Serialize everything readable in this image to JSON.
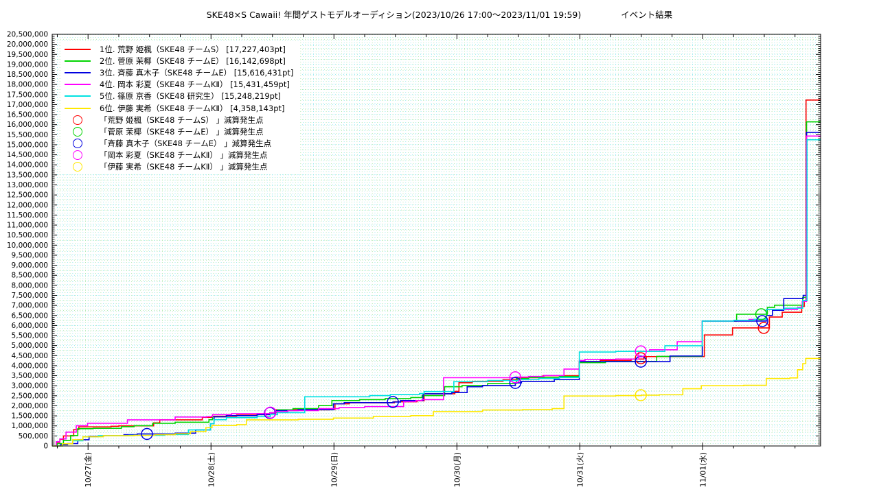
{
  "title_left": "SKE48×S Cawaii! 年間ゲストモデルオーディション(2023/10/26 17:00～2023/11/01 19:59)",
  "title_right": "イベント結果",
  "chart_data": {
    "type": "line",
    "title": "SKE48×S Cawaii! 年間ゲストモデルオーディション(2023/10/26 17:00～2023/11/01 19:59) イベント結果",
    "x_start_datetime": "2023/10/26 17:00",
    "x_end_datetime": "2023/11/01 19:59",
    "x_range_hours": [
      0,
      150
    ],
    "ylim": [
      0,
      20500000
    ],
    "ytick_step": 500000,
    "ytick_minor_step": 100000,
    "xtick_major": [
      {
        "hour": 7,
        "label": "10/27(金)"
      },
      {
        "hour": 31,
        "label": "10/28(土)"
      },
      {
        "hour": 55,
        "label": "10/29(日)"
      },
      {
        "hour": 79,
        "label": "10/30(月)"
      },
      {
        "hour": 103,
        "label": "10/31(火)"
      },
      {
        "hour": 127,
        "label": "11/01(水)"
      }
    ],
    "xtick_minor_step_hours": 6,
    "xtick_minor_start_hour": 1,
    "grid": {
      "dot_cyan": "#9ce9ef",
      "dot_green": "#b4e9b4"
    },
    "legend_position": "top-left",
    "series": [
      {
        "rank": 1,
        "name": "荒野 姫楓",
        "team": "SKE48 チームS",
        "final_pt": 17227403,
        "color": "#ff0000",
        "legend_label": "1位. 荒野 姫楓（SKE48 チームS）  [17,227,403pt]",
        "points": [
          [
            0,
            0
          ],
          [
            0.8,
            180000
          ],
          [
            1.5,
            330000
          ],
          [
            2.2,
            500000
          ],
          [
            4.2,
            820000
          ],
          [
            5.2,
            950000
          ],
          [
            11.5,
            980000
          ],
          [
            13,
            1000000
          ],
          [
            19.8,
            1150000
          ],
          [
            21,
            1300000
          ],
          [
            29.3,
            1430000
          ],
          [
            31.2,
            1480000
          ],
          [
            36,
            1540000
          ],
          [
            40,
            1600000
          ],
          [
            42.5,
            1640000
          ],
          [
            43.6,
            1800000
          ],
          [
            54.2,
            1820000
          ],
          [
            55.2,
            2100000
          ],
          [
            58,
            2150000
          ],
          [
            66.8,
            2200000
          ],
          [
            71.2,
            2250000
          ],
          [
            72.6,
            2600000
          ],
          [
            78.6,
            2720000
          ],
          [
            79.4,
            3150000
          ],
          [
            82,
            3220000
          ],
          [
            88,
            3300000
          ],
          [
            91.2,
            3400000
          ],
          [
            95.8,
            3500000
          ],
          [
            102.9,
            4200000
          ],
          [
            107,
            4260000
          ],
          [
            113,
            4330000
          ],
          [
            115.5,
            4450000
          ],
          [
            127.3,
            5530000
          ],
          [
            132.8,
            5880000
          ],
          [
            140,
            6420000
          ],
          [
            142.5,
            6660000
          ],
          [
            146.3,
            6950000
          ],
          [
            146.8,
            7250000
          ],
          [
            147.15,
            17227403
          ],
          [
            150,
            17227403
          ]
        ]
      },
      {
        "rank": 2,
        "name": "菅原 茉椰",
        "team": "SKE48 チームE",
        "final_pt": 16142698,
        "color": "#00d400",
        "legend_label": "2位. 菅原 茉椰（SKE48 チームE）  [16,142,698pt]",
        "points": [
          [
            0,
            0
          ],
          [
            1,
            120000
          ],
          [
            2.2,
            280000
          ],
          [
            3.6,
            520000
          ],
          [
            5,
            860000
          ],
          [
            8,
            880000
          ],
          [
            13.5,
            960000
          ],
          [
            16,
            1010000
          ],
          [
            19.6,
            1130000
          ],
          [
            24,
            1180000
          ],
          [
            30.6,
            1310000
          ],
          [
            31.3,
            1460000
          ],
          [
            34,
            1510000
          ],
          [
            40,
            1560000
          ],
          [
            42.6,
            1660000
          ],
          [
            44,
            1800000
          ],
          [
            47,
            1860000
          ],
          [
            52,
            2010000
          ],
          [
            54.6,
            2260000
          ],
          [
            60,
            2310000
          ],
          [
            65,
            2360000
          ],
          [
            70,
            2410000
          ],
          [
            72.2,
            2510000
          ],
          [
            76.6,
            2950000
          ],
          [
            80,
            3010000
          ],
          [
            85,
            3110000
          ],
          [
            90.6,
            3360000
          ],
          [
            93,
            3410000
          ],
          [
            99,
            3460000
          ],
          [
            102.9,
            4150000
          ],
          [
            108,
            4210000
          ],
          [
            118,
            4460000
          ],
          [
            126.9,
            6220000
          ],
          [
            133.6,
            6560000
          ],
          [
            139.6,
            6900000
          ],
          [
            141,
            7010000
          ],
          [
            146.5,
            7400000
          ],
          [
            147.25,
            16142698
          ],
          [
            150,
            16142698
          ]
        ]
      },
      {
        "rank": 3,
        "name": "斉藤 真木子",
        "team": "SKE48 チームE",
        "final_pt": 15616431,
        "color": "#0000e0",
        "legend_label": "3位. 斉藤 真木子（SKE48 チームE）  [15,616,431pt]",
        "points": [
          [
            0,
            0
          ],
          [
            1.6,
            60000
          ],
          [
            3,
            120000
          ],
          [
            5,
            310000
          ],
          [
            7.2,
            480000
          ],
          [
            10,
            510000
          ],
          [
            14,
            560000
          ],
          [
            16.6,
            600000
          ],
          [
            24,
            640000
          ],
          [
            28,
            800000
          ],
          [
            30.9,
            1110000
          ],
          [
            31.6,
            1450000
          ],
          [
            34,
            1510000
          ],
          [
            40,
            1560000
          ],
          [
            42.5,
            1640000
          ],
          [
            43.6,
            1760000
          ],
          [
            48,
            1810000
          ],
          [
            54.9,
            2100000
          ],
          [
            57,
            2160000
          ],
          [
            66.5,
            2190000
          ],
          [
            68,
            2260000
          ],
          [
            72.4,
            2600000
          ],
          [
            78,
            2660000
          ],
          [
            81,
            2950000
          ],
          [
            84,
            3010000
          ],
          [
            90.4,
            3140000
          ],
          [
            91.6,
            3210000
          ],
          [
            98,
            3310000
          ],
          [
            102.9,
            4200000
          ],
          [
            120.6,
            4480000
          ],
          [
            126.9,
            6220000
          ],
          [
            139.4,
            6500000
          ],
          [
            140.6,
            6760000
          ],
          [
            142.8,
            7340000
          ],
          [
            146.6,
            7500000
          ],
          [
            147.25,
            15616431
          ],
          [
            150,
            15616431
          ]
        ]
      },
      {
        "rank": 4,
        "name": "岡本 彩夏",
        "team": "SKE48 チームKⅡ",
        "final_pt": 15431459,
        "color": "#ff00ff",
        "legend_label": "4位. 岡本 彩夏（SKE48 チームKⅡ）  [15,431,459pt]",
        "points": [
          [
            0,
            0
          ],
          [
            0.8,
            210000
          ],
          [
            1.5,
            350000
          ],
          [
            2.7,
            690000
          ],
          [
            4.7,
            1010000
          ],
          [
            6.9,
            1130000
          ],
          [
            14.7,
            1300000
          ],
          [
            24,
            1440000
          ],
          [
            30.2,
            1460000
          ],
          [
            31.3,
            1560000
          ],
          [
            35,
            1610000
          ],
          [
            42.6,
            1660000
          ],
          [
            43.4,
            1710000
          ],
          [
            46,
            1760000
          ],
          [
            52,
            1860000
          ],
          [
            56,
            1910000
          ],
          [
            61,
            1960000
          ],
          [
            68.6,
            2210000
          ],
          [
            71,
            2260000
          ],
          [
            72.2,
            2310000
          ],
          [
            76.4,
            3400000
          ],
          [
            90.4,
            3430000
          ],
          [
            93,
            3460000
          ],
          [
            96,
            3510000
          ],
          [
            99.9,
            3830000
          ],
          [
            102.9,
            4260000
          ],
          [
            104,
            4310000
          ],
          [
            110,
            4330000
          ],
          [
            114.5,
            4710000
          ],
          [
            116.6,
            4790000
          ],
          [
            122,
            5190000
          ],
          [
            126.9,
            6220000
          ],
          [
            133,
            6260000
          ],
          [
            136,
            6300000
          ],
          [
            139.4,
            6800000
          ],
          [
            145.5,
            6900000
          ],
          [
            146.4,
            7200000
          ],
          [
            147.25,
            15431459
          ],
          [
            150,
            15431459
          ]
        ]
      },
      {
        "rank": 5,
        "name": "篠原 京香",
        "team": "SKE48 研究生",
        "final_pt": 15248219,
        "color": "#00e2e2",
        "legend_label": "5位. 篠原 京香（SKE48 研究生）  [15,248,219pt]",
        "points": [
          [
            0,
            0
          ],
          [
            2,
            110000
          ],
          [
            4,
            260000
          ],
          [
            6,
            460000
          ],
          [
            9,
            510000
          ],
          [
            15,
            530000
          ],
          [
            22,
            570000
          ],
          [
            26.6,
            800000
          ],
          [
            30.9,
            1110000
          ],
          [
            31.6,
            1310000
          ],
          [
            34,
            1410000
          ],
          [
            40,
            1460000
          ],
          [
            42.6,
            1560000
          ],
          [
            44,
            1660000
          ],
          [
            49.3,
            2450000
          ],
          [
            62,
            2510000
          ],
          [
            66,
            2560000
          ],
          [
            71.7,
            2610000
          ],
          [
            72.6,
            2710000
          ],
          [
            78.4,
            3200000
          ],
          [
            85,
            3260000
          ],
          [
            91,
            3310000
          ],
          [
            95,
            3360000
          ],
          [
            99,
            3410000
          ],
          [
            102.9,
            4680000
          ],
          [
            110,
            4710000
          ],
          [
            119.6,
            4990000
          ],
          [
            126.9,
            6220000
          ],
          [
            133,
            6260000
          ],
          [
            137,
            6310000
          ],
          [
            139.4,
            6800000
          ],
          [
            143,
            6860000
          ],
          [
            146.5,
            7250000
          ],
          [
            147.35,
            15248219
          ],
          [
            150,
            15248219
          ]
        ]
      },
      {
        "rank": 6,
        "name": "伊藤 実希",
        "team": "SKE48 チームKⅡ",
        "final_pt": 4358143,
        "color": "#ffe800",
        "legend_label": "6位. 伊藤 実希（SKE48 チームKⅡ）  [4,358,143pt]",
        "points": [
          [
            0,
            0
          ],
          [
            2,
            110000
          ],
          [
            4,
            310000
          ],
          [
            6,
            460000
          ],
          [
            10,
            510000
          ],
          [
            16,
            530000
          ],
          [
            20,
            560000
          ],
          [
            24,
            610000
          ],
          [
            27,
            710000
          ],
          [
            30,
            910000
          ],
          [
            31.2,
            1020000
          ],
          [
            36,
            1060000
          ],
          [
            37.9,
            1300000
          ],
          [
            48,
            1330000
          ],
          [
            54.9,
            1390000
          ],
          [
            62.7,
            1470000
          ],
          [
            70,
            1510000
          ],
          [
            74.4,
            1710000
          ],
          [
            84,
            1790000
          ],
          [
            91.8,
            1810000
          ],
          [
            97.6,
            1860000
          ],
          [
            99.9,
            2490000
          ],
          [
            110,
            2510000
          ],
          [
            115,
            2530000
          ],
          [
            118.5,
            2550000
          ],
          [
            123.1,
            2850000
          ],
          [
            126.7,
            3000000
          ],
          [
            135,
            3020000
          ],
          [
            139.4,
            3360000
          ],
          [
            144,
            3390000
          ],
          [
            145.5,
            3800000
          ],
          [
            146.5,
            4100000
          ],
          [
            147.1,
            4358143
          ],
          [
            150,
            4358143
          ]
        ]
      }
    ],
    "deduction_markers": [
      {
        "name": "荒野 姫楓",
        "color": "#ff0000",
        "legend_label": "「荒野 姫楓（SKE48 チームS） 」減算発生点",
        "points": [
          [
            114.9,
            4370000
          ],
          [
            138.9,
            5880000
          ]
        ]
      },
      {
        "name": "菅原 茉椰",
        "color": "#00d400",
        "legend_label": "「菅原 茉椰（SKE48 チームE） 」減算発生点",
        "points": [
          [
            138.4,
            6560000
          ]
        ]
      },
      {
        "name": "斉藤 真木子",
        "color": "#0000e0",
        "legend_label": "「斉藤 真木子（SKE48 チームE） 」減算発生点",
        "points": [
          [
            18.5,
            600000
          ],
          [
            42.5,
            1640000
          ],
          [
            66.5,
            2190000
          ],
          [
            90.4,
            3140000
          ],
          [
            114.9,
            4200000
          ],
          [
            138.6,
            6220000
          ]
        ]
      },
      {
        "name": "岡本 彩夏",
        "color": "#ff00ff",
        "legend_label": "「岡本 彩夏（SKE48 チームKⅡ） 」減算発生点",
        "points": [
          [
            42.6,
            1660000
          ],
          [
            90.4,
            3420000
          ],
          [
            114.9,
            4710000
          ]
        ]
      },
      {
        "name": "伊藤 実希",
        "color": "#ffe800",
        "legend_label": "「伊藤 実希（SKE48 チームKⅡ） 」減算発生点",
        "points": [
          [
            114.9,
            2530000
          ]
        ]
      }
    ]
  }
}
